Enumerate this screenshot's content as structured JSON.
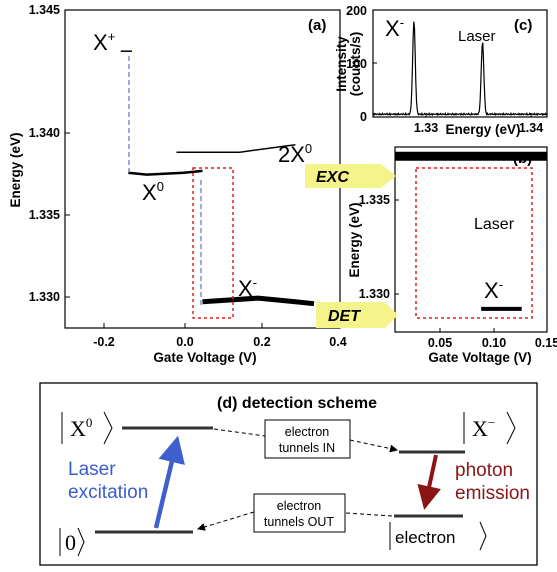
{
  "colors": {
    "laser_arrow": "#3f5fcf",
    "emission_arrow": "#8b1414",
    "highlight_box": "#e02020",
    "dashed_line": "#5a6fc8",
    "callout": "#f4f48a",
    "box_border": "#000000"
  },
  "panel_a": {
    "label": "(a)",
    "xlabel": "Gate Voltage (V)",
    "ylabel": "Energy (eV)",
    "xticks": [
      "-0.2",
      "0.0",
      "0.2",
      "0.4"
    ],
    "yticks": [
      "1.330",
      "1.335",
      "1.340",
      "1.345"
    ],
    "labels": {
      "xplus": "X",
      "xplus_sup": "+",
      "x0": "X",
      "x0_sup": "0",
      "twox0": "2X",
      "twox0_sup": "0",
      "xminus": "X",
      "xminus_sup": "-"
    },
    "chart_data": {
      "type": "line",
      "xlim": [
        -0.32,
        0.42
      ],
      "ylim": [
        1.328,
        1.345
      ],
      "series": [
        {
          "name": "X+",
          "x": [
            -0.17,
            -0.14
          ],
          "y": [
            1.3428,
            1.3428
          ]
        },
        {
          "name": "X0",
          "x": [
            -0.15,
            -0.1,
            0.0,
            0.05
          ],
          "y": [
            1.3363,
            1.3362,
            1.3363,
            1.3364
          ]
        },
        {
          "name": "2X0",
          "x": [
            -0.02,
            0.15,
            0.3
          ],
          "y": [
            1.3374,
            1.3374,
            1.3378
          ]
        },
        {
          "name": "X-",
          "x": [
            0.05,
            0.2,
            0.3,
            0.35
          ],
          "y": [
            1.3294,
            1.3296,
            1.3294,
            1.3293
          ]
        }
      ]
    }
  },
  "panel_b": {
    "label": "(b)",
    "xlabel": "Gate Voltage (V)",
    "ylabel": "Energy (eV)",
    "xticks": [
      "0.05",
      "0.10",
      "0.15"
    ],
    "yticks": [
      "1.330",
      "1.335"
    ],
    "labels": {
      "laser": "Laser",
      "xminus": "X",
      "xminus_sup": "-"
    },
    "chart_data": {
      "type": "line",
      "xlim": [
        0.0,
        0.15
      ],
      "ylim": [
        1.3285,
        1.3365
      ],
      "series": [
        {
          "name": "Laser",
          "x": [
            0.0,
            0.15
          ],
          "y": [
            1.3361,
            1.3361
          ]
        },
        {
          "name": "X-",
          "x": [
            0.085,
            0.125
          ],
          "y": [
            1.3295,
            1.3295
          ]
        }
      ]
    }
  },
  "panel_c": {
    "label": "(c)",
    "xlabel": "Energy (eV)",
    "ylabel_line1": "Intensity",
    "ylabel_line2": "(counts/s)",
    "xticks": [
      "1.33",
      "1.34"
    ],
    "yticks": [
      "0",
      "100",
      "200"
    ],
    "labels": {
      "xminus": "X",
      "xminus_sup": "-",
      "laser": "Laser"
    },
    "chart_data": {
      "type": "line",
      "xlim": [
        1.3255,
        1.3425
      ],
      "ylim": [
        0,
        200
      ],
      "peaks": [
        {
          "name": "X-",
          "x": 1.3295,
          "y": 175
        },
        {
          "name": "Laser",
          "x": 1.3362,
          "y": 135
        }
      ]
    }
  },
  "callouts": {
    "exc": "EXC",
    "det": "DET"
  },
  "panel_d": {
    "title": "(d) detection scheme",
    "in_box_line1": "electron",
    "in_box_line2": "tunnels IN",
    "out_box_line1": "electron",
    "out_box_line2": "tunnels OUT",
    "laser_line1": "Laser",
    "laser_line2": "excitation",
    "photon_line1": "photon",
    "photon_line2": "emission",
    "ket_x0": "X",
    "ket_x0_sup": "0",
    "ket_xm": "X",
    "ket_xm_sup": "−",
    "ket_zero": "0",
    "ket_electron": "electron"
  }
}
